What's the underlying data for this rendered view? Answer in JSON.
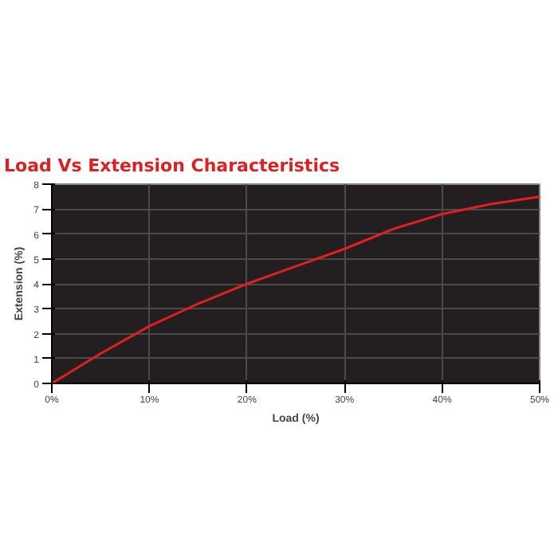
{
  "chart_data": {
    "type": "line",
    "title": "Load Vs Extension Characteristics",
    "xlabel": "Load (%)",
    "ylabel": "Extension (%)",
    "x": [
      0,
      5,
      10,
      15,
      20,
      25,
      30,
      35,
      40,
      45,
      50
    ],
    "series": [
      {
        "color": "#e02020",
        "values": [
          0,
          1.2,
          2.3,
          3.2,
          4.0,
          4.7,
          5.4,
          6.2,
          6.8,
          7.2,
          7.5
        ]
      }
    ],
    "xlim": [
      0,
      50
    ],
    "ylim": [
      0,
      8
    ],
    "xticks": [
      {
        "value": 0,
        "label": "0%"
      },
      {
        "value": 10,
        "label": "10%"
      },
      {
        "value": 20,
        "label": "20%"
      },
      {
        "value": 30,
        "label": "30%"
      },
      {
        "value": 40,
        "label": "40%"
      },
      {
        "value": 50,
        "label": "50%"
      }
    ],
    "yticks": [
      0,
      1,
      2,
      3,
      4,
      5,
      6,
      7,
      8
    ],
    "grid": true,
    "marker": "none",
    "line_style": "solid"
  }
}
